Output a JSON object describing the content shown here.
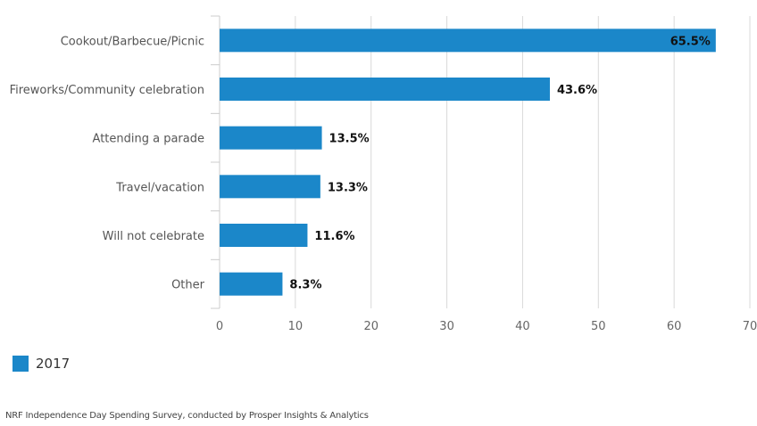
{
  "chart_data": {
    "type": "bar",
    "orientation": "horizontal",
    "categories": [
      "Cookout/Barbecue/Picnic",
      "Fireworks/Community celebration",
      "Attending a parade",
      "Travel/vacation",
      "Will not celebrate",
      "Other"
    ],
    "series": [
      {
        "name": "2017",
        "values": [
          65.5,
          43.6,
          13.5,
          13.3,
          11.6,
          8.3
        ],
        "labels": [
          "65.5%",
          "43.6%",
          "13.5%",
          "13.3%",
          "11.6%",
          "8.3%"
        ],
        "color": "#1b87c9"
      }
    ],
    "xticks": [
      0,
      10,
      20,
      30,
      40,
      50,
      60,
      70
    ],
    "xlim": [
      0,
      70
    ],
    "grid": "vertical",
    "legend_position": "bottom-left"
  },
  "legend": {
    "label": "2017",
    "color": "#1b87c9"
  },
  "source": "NRF Independence Day Spending Survey, conducted by Prosper Insights & Analytics",
  "colors": {
    "bar": "#1b87c9",
    "grid": "#d9d9d9",
    "axis": "#cccccc"
  }
}
